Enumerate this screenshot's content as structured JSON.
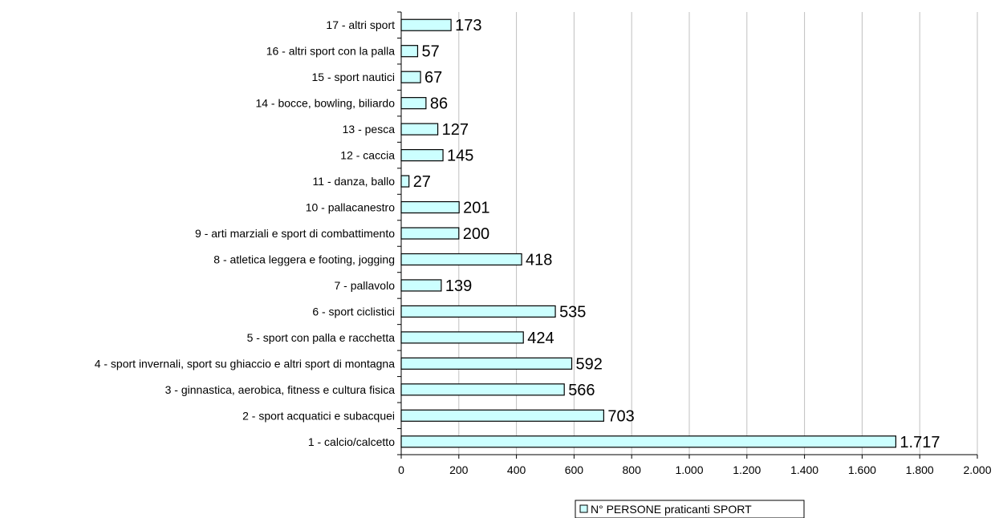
{
  "chart_data": {
    "type": "bar",
    "orientation": "horizontal",
    "categories": [
      "1 - calcio/calcetto",
      "2 - sport acquatici e subacquei",
      "3 - ginnastica, aerobica, fitness e cultura fisica",
      "4 - sport invernali, sport su ghiaccio e altri sport di montagna",
      "5 - sport con palla e racchetta",
      "6 - sport ciclistici",
      "7 - pallavolo",
      "8 - atletica leggera e footing, jogging",
      "9 - arti marziali e sport di combattimento",
      "10 - pallacanestro",
      "11 - danza, ballo",
      "12 - caccia",
      "13 - pesca",
      "14 - bocce, bowling, biliardo",
      "15 - sport nautici",
      "16 - altri sport con la palla",
      "17 - altri sport"
    ],
    "series": [
      {
        "name": "N° PERSONE praticanti SPORT",
        "values": [
          1717,
          703,
          566,
          592,
          424,
          535,
          139,
          418,
          200,
          201,
          27,
          145,
          127,
          86,
          67,
          57,
          173
        ],
        "data_labels": [
          "1.717",
          "703",
          "566",
          "592",
          "424",
          "535",
          "139",
          "418",
          "200",
          "201",
          "27",
          "145",
          "127",
          "86",
          "67",
          "57",
          "173"
        ],
        "color": "#ccffff"
      }
    ],
    "xlim": [
      0,
      2000
    ],
    "xticks": [
      0,
      200,
      400,
      600,
      800,
      1000,
      1200,
      1400,
      1600,
      1800,
      2000
    ],
    "xtick_labels": [
      "0",
      "200",
      "400",
      "600",
      "800",
      "1.000",
      "1.200",
      "1.400",
      "1.600",
      "1.800",
      "2.000"
    ],
    "grid": true,
    "legend_position": "bottom"
  }
}
